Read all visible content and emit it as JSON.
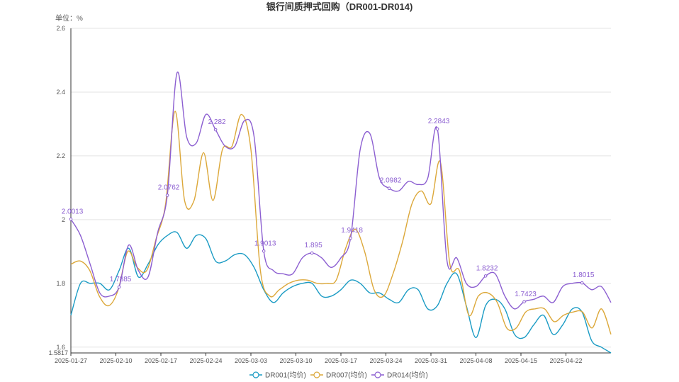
{
  "chart_data": {
    "type": "line",
    "title": "银行间质押式回购（DR001-DR014)",
    "unit_label": "单位：%",
    "x_ticks": [
      "2025-01-27",
      "2025-02-10",
      "2025-02-17",
      "2025-02-24",
      "2025-03-03",
      "2025-03-10",
      "2025-03-17",
      "2025-03-24",
      "2025-03-31",
      "2025-04-08",
      "2025-04-15",
      "2025-04-22"
    ],
    "y_ticks": [
      "1.6",
      "1.8",
      "2",
      "2.2",
      "2.4",
      "2.6"
    ],
    "y_min_label": "1.5817",
    "ylim": [
      1.5817,
      2.6
    ],
    "grid": true,
    "legend_position": "bottom-center",
    "series": [
      {
        "name": "DR001(均价)",
        "color": "#1a9bc4",
        "values": [
          1.7,
          1.8,
          1.8,
          1.8,
          1.78,
          1.84,
          1.91,
          1.82,
          1.86,
          1.92,
          1.95,
          1.96,
          1.91,
          1.95,
          1.94,
          1.87,
          1.87,
          1.89,
          1.89,
          1.85,
          1.78,
          1.74,
          1.77,
          1.79,
          1.8,
          1.8,
          1.76,
          1.76,
          1.78,
          1.81,
          1.8,
          1.77,
          1.77,
          1.75,
          1.74,
          1.78,
          1.78,
          1.72,
          1.73,
          1.8,
          1.83,
          1.73,
          1.63,
          1.73,
          1.75,
          1.72,
          1.64,
          1.63,
          1.67,
          1.7,
          1.64,
          1.67,
          1.72,
          1.71,
          1.62,
          1.6,
          1.58
        ]
      },
      {
        "name": "DR007(均价)",
        "color": "#dca83a",
        "values": [
          1.86,
          1.87,
          1.84,
          1.76,
          1.73,
          1.78,
          1.9,
          1.85,
          1.84,
          1.94,
          2.05,
          2.34,
          2.06,
          2.06,
          2.21,
          2.06,
          2.22,
          2.23,
          2.33,
          2.22,
          1.84,
          1.76,
          1.78,
          1.8,
          1.81,
          1.81,
          1.8,
          1.8,
          1.81,
          1.91,
          1.97,
          1.9,
          1.78,
          1.76,
          1.83,
          1.93,
          2.05,
          2.09,
          2.05,
          2.18,
          1.86,
          1.84,
          1.7,
          1.76,
          1.77,
          1.74,
          1.66,
          1.66,
          1.71,
          1.72,
          1.72,
          1.68,
          1.7,
          1.71,
          1.71,
          1.66,
          1.72,
          1.64
        ]
      },
      {
        "name": "DR014(均价)",
        "color": "#8c5fd1",
        "values": [
          2.0013,
          1.95,
          1.86,
          1.77,
          1.76,
          1.7885,
          1.92,
          1.84,
          1.82,
          1.96,
          2.0762,
          2.46,
          2.26,
          2.24,
          2.33,
          2.282,
          2.23,
          2.23,
          2.31,
          2.26,
          1.9013,
          1.84,
          1.83,
          1.83,
          1.88,
          1.895,
          1.88,
          1.85,
          1.88,
          1.9418,
          2.22,
          2.27,
          2.13,
          2.0982,
          2.09,
          2.12,
          2.11,
          2.13,
          2.2843,
          1.87,
          1.88,
          1.8,
          1.79,
          1.8232,
          1.83,
          1.76,
          1.72,
          1.7423,
          1.75,
          1.76,
          1.74,
          1.79,
          1.8,
          1.8015,
          1.78,
          1.79,
          1.74
        ]
      }
    ],
    "data_labels": [
      {
        "series": "DR014(均价)",
        "index": 0,
        "text": "2.0013"
      },
      {
        "series": "DR014(均价)",
        "index": 5,
        "text": "1.7885"
      },
      {
        "series": "DR014(均价)",
        "index": 10,
        "text": "2.0762"
      },
      {
        "series": "DR014(均价)",
        "index": 15,
        "text": "2.282"
      },
      {
        "series": "DR014(均价)",
        "index": 20,
        "text": "1.9013"
      },
      {
        "series": "DR014(均价)",
        "index": 25,
        "text": "1.895"
      },
      {
        "series": "DR014(均价)",
        "index": 29,
        "text": "1.9418"
      },
      {
        "series": "DR014(均价)",
        "index": 33,
        "text": "2.0982"
      },
      {
        "series": "DR014(均价)",
        "index": 38,
        "text": "2.2843"
      },
      {
        "series": "DR014(均价)",
        "index": 43,
        "text": "1.8232"
      },
      {
        "series": "DR014(均价)",
        "index": 47,
        "text": "1.7423"
      },
      {
        "series": "DR014(均价)",
        "index": 53,
        "text": "1.8015"
      }
    ]
  }
}
